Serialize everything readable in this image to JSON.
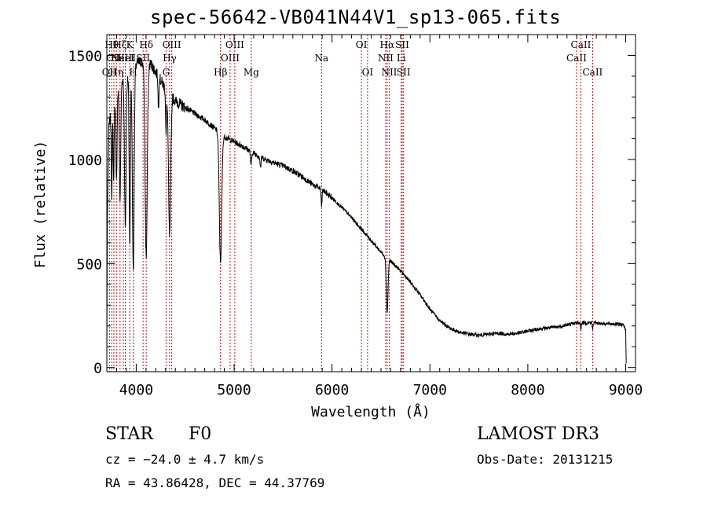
{
  "header": {
    "title": "spec-56642-VB041N44V1_sp13-065.fits"
  },
  "info": {
    "object_class": "STAR",
    "subclass": "F0",
    "survey": "LAMOST DR3",
    "cz": "cz = −24.0 ± 4.7 km/s",
    "obs_date": "Obs-Date: 20131215",
    "radec": "RA =  43.86428, DEC =  44.37769"
  },
  "colors": {
    "line_marker": "#c81414",
    "spectrum": "#000000"
  },
  "chart_data": {
    "type": "line",
    "title": "spec-56642-VB041N44V1_sp13-065.fits",
    "xlabel": "Wavelength (Å)",
    "ylabel": "Flux (relative)",
    "xlim": [
      3700,
      9100
    ],
    "ylim": [
      -20,
      1600
    ],
    "x_ticks": [
      4000,
      5000,
      6000,
      7000,
      8000,
      9000
    ],
    "y_ticks": [
      0,
      500,
      1000,
      1500
    ],
    "continuum": [
      [
        3700,
        20
      ],
      [
        3705,
        700
      ],
      [
        3720,
        1150
      ],
      [
        3750,
        1250
      ],
      [
        3800,
        1320
      ],
      [
        3850,
        1380
      ],
      [
        3900,
        1400
      ],
      [
        3950,
        1420
      ],
      [
        4000,
        1460
      ],
      [
        4050,
        1470
      ],
      [
        4100,
        1450
      ],
      [
        4150,
        1460
      ],
      [
        4200,
        1420
      ],
      [
        4250,
        1380
      ],
      [
        4300,
        1340
      ],
      [
        4350,
        1320
      ],
      [
        4400,
        1280
      ],
      [
        4500,
        1250
      ],
      [
        4600,
        1220
      ],
      [
        4700,
        1190
      ],
      [
        4800,
        1150
      ],
      [
        4900,
        1110
      ],
      [
        5000,
        1085
      ],
      [
        5100,
        1060
      ],
      [
        5200,
        1030
      ],
      [
        5300,
        1005
      ],
      [
        5400,
        985
      ],
      [
        5500,
        970
      ],
      [
        5600,
        945
      ],
      [
        5700,
        915
      ],
      [
        5800,
        880
      ],
      [
        5900,
        855
      ],
      [
        6000,
        815
      ],
      [
        6100,
        770
      ],
      [
        6200,
        720
      ],
      [
        6300,
        665
      ],
      [
        6400,
        610
      ],
      [
        6500,
        555
      ],
      [
        6600,
        510
      ],
      [
        6700,
        465
      ],
      [
        6800,
        410
      ],
      [
        6900,
        350
      ],
      [
        7000,
        280
      ],
      [
        7100,
        225
      ],
      [
        7200,
        190
      ],
      [
        7300,
        170
      ],
      [
        7400,
        160
      ],
      [
        7500,
        155
      ],
      [
        7600,
        160
      ],
      [
        7700,
        165
      ],
      [
        7800,
        160
      ],
      [
        7900,
        165
      ],
      [
        8000,
        175
      ],
      [
        8100,
        185
      ],
      [
        8200,
        190
      ],
      [
        8300,
        195
      ],
      [
        8400,
        205
      ],
      [
        8500,
        215
      ],
      [
        8600,
        215
      ],
      [
        8700,
        215
      ],
      [
        8800,
        210
      ],
      [
        8900,
        210
      ],
      [
        8980,
        205
      ],
      [
        9000,
        180
      ],
      [
        9005,
        20
      ]
    ],
    "absorption": [
      {
        "x": 3750,
        "depth": 420,
        "width": 5
      },
      {
        "x": 3770,
        "depth": 380,
        "width": 5
      },
      {
        "x": 3798,
        "depth": 430,
        "width": 6
      },
      {
        "x": 3835,
        "depth": 560,
        "width": 7
      },
      {
        "x": 3889,
        "depth": 730,
        "width": 8
      },
      {
        "x": 3934,
        "depth": 820,
        "width": 6
      },
      {
        "x": 3970,
        "depth": 960,
        "width": 9
      },
      {
        "x": 4102,
        "depth": 920,
        "width": 11
      },
      {
        "x": 4227,
        "depth": 160,
        "width": 4
      },
      {
        "x": 4305,
        "depth": 220,
        "width": 5
      },
      {
        "x": 4341,
        "depth": 690,
        "width": 11
      },
      {
        "x": 4861,
        "depth": 620,
        "width": 12
      },
      {
        "x": 5173,
        "depth": 70,
        "width": 6
      },
      {
        "x": 5270,
        "depth": 50,
        "width": 5
      },
      {
        "x": 5893,
        "depth": 80,
        "width": 5
      },
      {
        "x": 6563,
        "depth": 260,
        "width": 9
      },
      {
        "x": 8542,
        "depth": 30,
        "width": 4
      },
      {
        "x": 8662,
        "depth": 30,
        "width": 4
      }
    ],
    "spectral_lines": [
      {
        "wavelength": 3727,
        "label": "OII",
        "row": 3
      },
      {
        "wavelength": 3750,
        "label": "Hθ",
        "row": 1
      },
      {
        "wavelength": 3772,
        "label": "OII",
        "row": 2
      },
      {
        "wavelength": 3798,
        "label": "Hη",
        "row": 3
      },
      {
        "wavelength": 3835,
        "label": "Hζ",
        "row": 1
      },
      {
        "wavelength": 3869,
        "label": "NeIII",
        "row": 2
      },
      {
        "wavelength": 3889,
        "label": "HeI",
        "row": 2
      },
      {
        "wavelength": 3934,
        "label": "K",
        "row": 1
      },
      {
        "wavelength": 3970,
        "label": "H",
        "row": 3
      },
      {
        "wavelength": 4070,
        "label": "SII",
        "row": 2
      },
      {
        "wavelength": 4102,
        "label": "Hδ",
        "row": 1
      },
      {
        "wavelength": 4305,
        "label": "G",
        "row": 3
      },
      {
        "wavelength": 4341,
        "label": "Hγ",
        "row": 2
      },
      {
        "wavelength": 4363,
        "label": "OIII",
        "row": 1
      },
      {
        "wavelength": 4861,
        "label": "Hβ",
        "row": 3
      },
      {
        "wavelength": 4959,
        "label": "OIII",
        "row": 2
      },
      {
        "wavelength": 5007,
        "label": "OIII",
        "row": 1
      },
      {
        "wavelength": 5175,
        "label": "Mg",
        "row": 3
      },
      {
        "wavelength": 5893,
        "label": "Na",
        "row": 2
      },
      {
        "wavelength": 6300,
        "label": "OI",
        "row": 1
      },
      {
        "wavelength": 6363,
        "label": "OI",
        "row": 3
      },
      {
        "wavelength": 6548,
        "label": "NII",
        "row": 2
      },
      {
        "wavelength": 6563,
        "label": "Hα",
        "row": 1
      },
      {
        "wavelength": 6584,
        "label": "NII",
        "row": 3
      },
      {
        "wavelength": 6707,
        "label": "Li",
        "row": 2
      },
      {
        "wavelength": 6717,
        "label": "SII",
        "row": 1
      },
      {
        "wavelength": 6731,
        "label": "SII",
        "row": 3
      },
      {
        "wavelength": 8498,
        "label": "CaII",
        "row": 2
      },
      {
        "wavelength": 8542,
        "label": "CaII",
        "row": 1
      },
      {
        "wavelength": 8662,
        "label": "CaII",
        "row": 3
      }
    ]
  }
}
